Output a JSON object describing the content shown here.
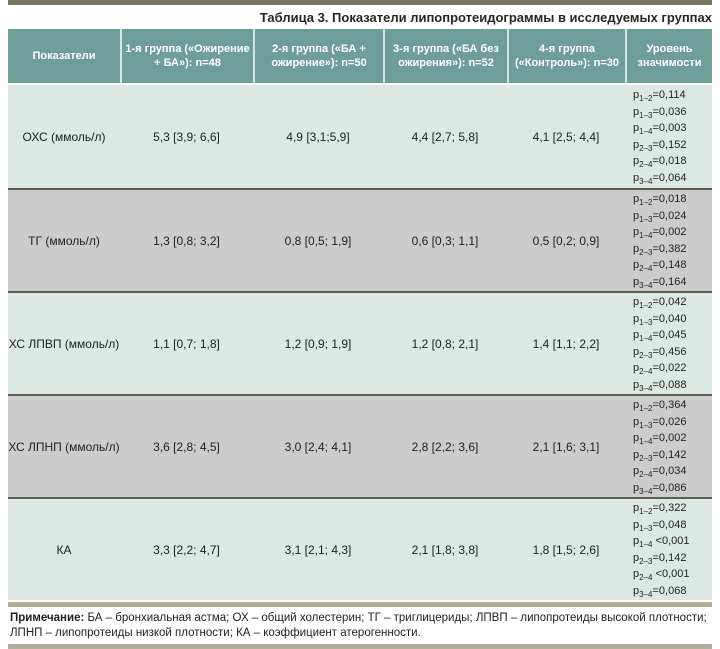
{
  "title": "Таблица 3. Показатели липопротеидограммы в исследуемых группах",
  "colors": {
    "header_bg": "#6f9e99",
    "row_light": "#dce8e4",
    "row_gray": "#cccccc",
    "top_bar": "#7b7365",
    "bottom_bar": "#b3ab9b",
    "row_divider": "#5c5e4e",
    "header_text": "#ffffff"
  },
  "table": {
    "p_prefix": "p",
    "columns": [
      "Показатели",
      "1-я группа («Ожирение + БА»): n=48",
      "2-я группа («БА + ожирение»): n=50",
      "3-я группа («БА без ожирения»): n=52",
      "4-я группа («Контроль»): n=30",
      "Уровень значимости"
    ],
    "rows": [
      {
        "label": "ОХС (ммоль/л)",
        "values": [
          "5,3 [3,9; 6,6]",
          "4,9 [3,1;5,9]",
          "4,4 [2,7; 5,8]",
          "4,1 [2,5; 4,4]"
        ],
        "p": [
          {
            "sub": "1–2",
            "val": "=0,114"
          },
          {
            "sub": "1–3",
            "val": "=0,036"
          },
          {
            "sub": "1–4",
            "val": "=0,003"
          },
          {
            "sub": "2–3",
            "val": "=0,152"
          },
          {
            "sub": "2–4",
            "val": "=0,018"
          },
          {
            "sub": "3–4",
            "val": "=0,064"
          }
        ]
      },
      {
        "label": "ТГ (ммоль/л)",
        "values": [
          "1,3 [0,8; 3,2]",
          "0,8 [0,5; 1,9]",
          "0,6 [0,3; 1,1]",
          "0,5 [0,2; 0,9]"
        ],
        "p": [
          {
            "sub": "1–2",
            "val": "=0,018"
          },
          {
            "sub": "1–3",
            "val": "=0,024"
          },
          {
            "sub": "1–4",
            "val": "=0,002"
          },
          {
            "sub": "2–3",
            "val": "=0,382"
          },
          {
            "sub": "2–4",
            "val": "=0,148"
          },
          {
            "sub": "3–4",
            "val": "=0,164"
          }
        ]
      },
      {
        "label": "ХС ЛПВП (ммоль/л)",
        "values": [
          "1,1 [0,7; 1,8]",
          "1,2 [0,9; 1,9]",
          "1,2 [0,8; 2,1]",
          "1,4 [1,1; 2,2]"
        ],
        "p": [
          {
            "sub": "1–2",
            "val": "=0,042"
          },
          {
            "sub": "1–3",
            "val": "=0,040"
          },
          {
            "sub": "1–4",
            "val": "=0,045"
          },
          {
            "sub": "2–3",
            "val": "=0,456"
          },
          {
            "sub": "2–4",
            "val": "=0,022"
          },
          {
            "sub": "3–4",
            "val": "=0,088"
          }
        ]
      },
      {
        "label": "ХС ЛПНП (ммоль/л)",
        "values": [
          "3,6 [2,8; 4,5]",
          "3,0 [2,4; 4,1]",
          "2,8 [2,2; 3,6]",
          "2,1 [1,6; 3,1]"
        ],
        "p": [
          {
            "sub": "1–2",
            "val": "=0,364"
          },
          {
            "sub": "1–3",
            "val": "=0,026"
          },
          {
            "sub": "1–4",
            "val": "=0,002"
          },
          {
            "sub": "2–3",
            "val": "=0,142"
          },
          {
            "sub": "2–4",
            "val": "=0,034"
          },
          {
            "sub": "3–4",
            "val": "=0,086"
          }
        ]
      },
      {
        "label": "КА",
        "values": [
          "3,3 [2,2; 4,7]",
          "3,1 [2,1; 4,3]",
          "2,1 [1,8; 3,8]",
          "1,8 [1,5; 2,6]"
        ],
        "p": [
          {
            "sub": "1–2",
            "val": "=0,322"
          },
          {
            "sub": "1–3",
            "val": "=0,048"
          },
          {
            "sub": "1–4",
            "val": " <0,001"
          },
          {
            "sub": "2–3",
            "val": "=0,142"
          },
          {
            "sub": "2–4",
            "val": " <0,001"
          },
          {
            "sub": "3–4",
            "val": "=0,068"
          }
        ]
      }
    ]
  },
  "footnote": {
    "label": "Примечание:",
    "text": " БА – бронхиальная астма; ОХ – общий холестерин; ТГ – триглицериды; ЛПВП – липопротеиды высокой плотности; ЛПНП – липопротеиды низкой плотности; КА – коэффициент атерогенности."
  }
}
